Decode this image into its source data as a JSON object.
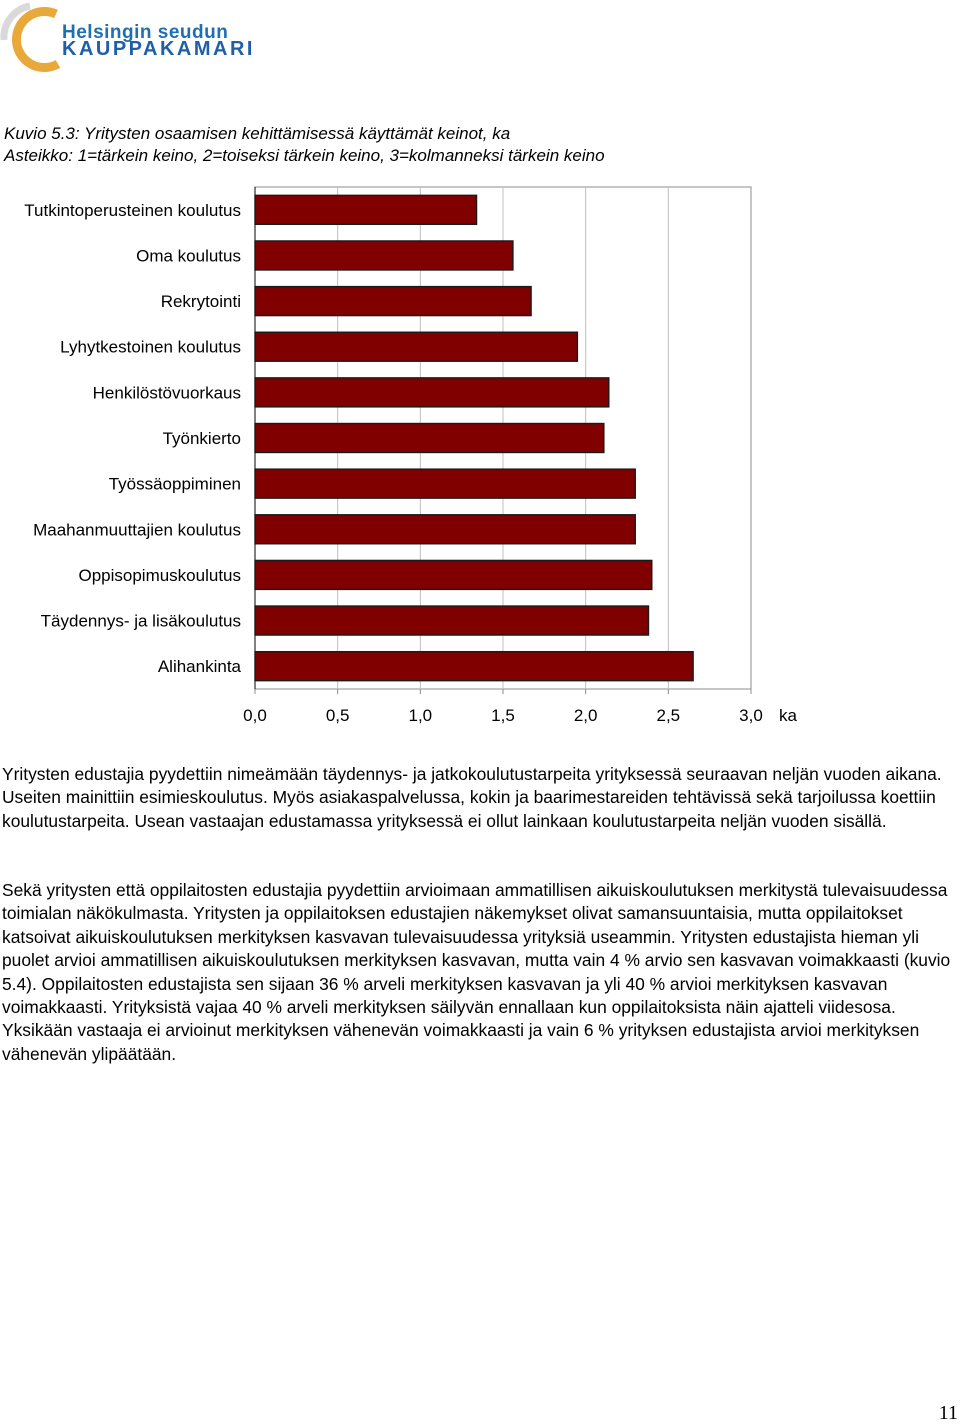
{
  "logo": {
    "line1": "Helsingin seudun",
    "line2": "KAUPPAKAMARI"
  },
  "caption": {
    "line1": "Kuvio 5.3: Yritysten osaamisen kehittämisessä käyttämät keinot, ka",
    "line2": "Asteikko: 1=tärkein keino, 2=toiseksi tärkein keino, 3=kolmanneksi tärkein keino"
  },
  "chart_data": {
    "type": "bar",
    "orientation": "horizontal",
    "categories": [
      "Tutkintoperusteinen koulutus",
      "Oma koulutus",
      "Rekrytointi",
      "Lyhytkestoinen koulutus",
      "Henkilöstövuorkaus",
      "Työnkierto",
      "Työssäoppiminen",
      "Maahanmuuttajien koulutus",
      "Oppisopimuskoulutus",
      "Täydennys- ja lisäkoulutus",
      "Alihankinta"
    ],
    "values": [
      1.34,
      1.56,
      1.67,
      1.95,
      2.14,
      2.11,
      2.3,
      2.3,
      2.4,
      2.38,
      2.65
    ],
    "xlim": [
      0,
      3
    ],
    "xticks": [
      "0,0",
      "0,5",
      "1,0",
      "1,5",
      "2,0",
      "2,5",
      "3,0"
    ],
    "xunit": "ka",
    "bar_color": "#800000",
    "grid": "vertical"
  },
  "paragraphs": [
    "Yritysten edustajia pyydettiin nimeämään täydennys- ja jatkokoulutustarpeita yrityksessä seuraavan neljän vuoden aikana. Useiten mainittiin esimieskoulutus. Myös asiakaspalvelussa, kokin ja baarimestareiden tehtävissä sekä tarjoilussa koettiin koulutustarpeita. Usean vastaajan edustamassa yrityksessä ei ollut lainkaan koulutustarpeita neljän vuoden sisällä.",
    "Sekä yritysten että oppilaitosten edustajia pyydettiin arvioimaan ammatillisen aikuiskoulutuksen merkitystä tulevaisuudessa toimialan näkökulmasta. Yritysten ja oppilaitoksen edustajien näkemykset olivat samansuuntaisia, mutta oppilaitokset katsoivat aikuiskoulutuksen merkityksen kasvavan tulevaisuudessa yrityksiä useammin. Yritysten edustajista hieman yli puolet arvioi ammatillisen aikuiskoulutuksen merkityksen kasvavan, mutta vain 4 % arvio sen kasvavan voimakkaasti (kuvio 5.4). Oppilaitosten edustajista sen sijaan 36 % arveli merkityksen kasvavan ja yli 40 % arvioi merkityksen kasvavan voimakkaasti. Yrityksistä vajaa 40 % arveli merkityksen säilyvän ennallaan kun oppilaitoksista näin ajatteli viidesosa. Yksikään vastaaja ei arvioinut merkityksen vähenevän voimakkaasti ja vain 6 % yrityksen edustajista arvioi merkityksen vähenevän ylipäätään."
  ],
  "page_number": "11"
}
